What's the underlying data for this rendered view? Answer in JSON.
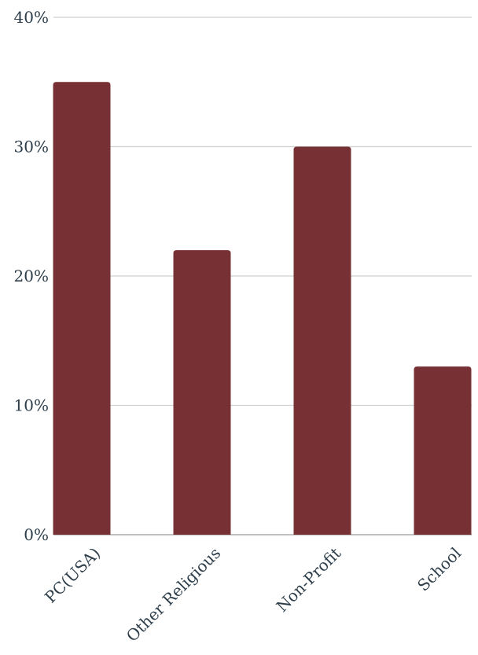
{
  "chart_data": {
    "type": "bar",
    "categories": [
      "PC(USA)",
      "Other Religious",
      "Non-Profit",
      "School"
    ],
    "values": [
      35,
      22,
      30,
      13
    ],
    "value_unit": "percent",
    "ylim": [
      0,
      40
    ],
    "yticks": [
      0,
      10,
      20,
      30,
      40
    ],
    "ytick_labels": [
      "0%",
      "10%",
      "20%",
      "30%",
      "40%"
    ],
    "grid": true,
    "legend": "none",
    "title": "",
    "xlabel": "",
    "ylabel": "",
    "bar_color": "#773134"
  }
}
